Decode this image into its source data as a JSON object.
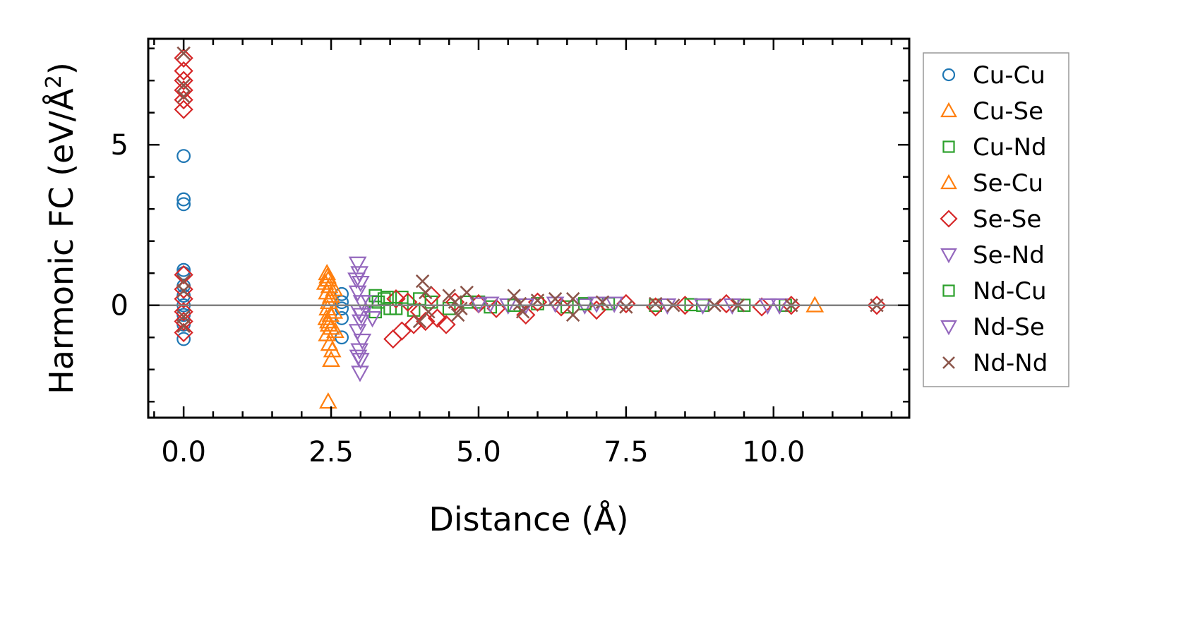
{
  "chart_data": {
    "type": "scatter",
    "title": "",
    "xlabel": "Distance (Å)",
    "ylabel_main": "Harmonic FC (eV/Å",
    "ylabel_sup": "2",
    "ylabel_close": ")",
    "xlim": [
      -0.6,
      12.3
    ],
    "ylim": [
      -3.5,
      8.3
    ],
    "x_ticks": [
      0.0,
      2.5,
      5.0,
      7.5,
      10.0
    ],
    "x_tick_labels": [
      "0.0",
      "2.5",
      "5.0",
      "7.5",
      "10.0"
    ],
    "y_ticks": [
      0,
      5
    ],
    "y_tick_labels": [
      "0",
      "5"
    ],
    "zero_line": true,
    "legend_position": "right",
    "series": [
      {
        "name": "Cu-Cu",
        "marker": "circle",
        "color": "#1f77b4",
        "points": [
          [
            0,
            4.65
          ],
          [
            0,
            3.3
          ],
          [
            0,
            3.15
          ],
          [
            0,
            1.1
          ],
          [
            0,
            1.0
          ],
          [
            0,
            0.6
          ],
          [
            0,
            0.3
          ],
          [
            0,
            0
          ],
          [
            0,
            -0.3
          ],
          [
            0,
            -0.6
          ],
          [
            0,
            -1.05
          ],
          [
            2.68,
            0.35
          ],
          [
            2.68,
            0.1
          ],
          [
            2.68,
            -0.1
          ],
          [
            2.68,
            -0.4
          ],
          [
            2.68,
            -1.0
          ]
        ]
      },
      {
        "name": "Cu-Se",
        "marker": "triangle-up",
        "color": "#ff7f0e",
        "points": [
          [
            2.43,
            1.0
          ],
          [
            2.45,
            0.8
          ],
          [
            2.47,
            0.6
          ],
          [
            2.43,
            0.4
          ],
          [
            2.5,
            0.3
          ],
          [
            2.46,
            0.1
          ],
          [
            2.44,
            -0.1
          ],
          [
            2.49,
            -0.3
          ],
          [
            2.45,
            -0.5
          ],
          [
            2.5,
            -0.7
          ],
          [
            2.43,
            -0.9
          ],
          [
            2.47,
            -1.2
          ],
          [
            2.5,
            -1.7
          ],
          [
            2.45,
            -3.0
          ],
          [
            2.55,
            0.5
          ],
          [
            2.55,
            -0.2
          ],
          [
            2.57,
            -0.8
          ],
          [
            2.4,
            0.7
          ],
          [
            2.42,
            -0.4
          ],
          [
            10.7,
            0.0
          ]
        ]
      },
      {
        "name": "Cu-Nd",
        "marker": "square",
        "color": "#2ca02c",
        "points": [
          [
            3.25,
            0.3
          ],
          [
            3.25,
            -0.2
          ],
          [
            3.4,
            0.2
          ],
          [
            3.5,
            -0.1
          ],
          [
            3.7,
            0.25
          ],
          [
            3.9,
            -0.15
          ],
          [
            4.2,
            0.1
          ],
          [
            4.5,
            -0.1
          ],
          [
            5.0,
            0.1
          ],
          [
            5.2,
            -0.05
          ],
          [
            6.0,
            0.05
          ],
          [
            6.5,
            -0.05
          ],
          [
            7.2,
            0.05
          ],
          [
            8.0,
            0
          ],
          [
            8.8,
            0
          ],
          [
            9.5,
            0
          ],
          [
            10.2,
            0
          ]
        ]
      },
      {
        "name": "Se-Cu",
        "marker": "triangle-up",
        "color": "#ff7f0e",
        "points": [
          [
            2.44,
            0.9
          ],
          [
            2.48,
            0.2
          ],
          [
            2.46,
            -0.6
          ],
          [
            2.52,
            -1.4
          ]
        ]
      },
      {
        "name": "Se-Se",
        "marker": "diamond",
        "color": "#d62728",
        "points": [
          [
            0,
            7.7
          ],
          [
            0,
            7.3
          ],
          [
            0,
            7.0
          ],
          [
            0,
            6.7
          ],
          [
            0,
            6.4
          ],
          [
            0,
            6.1
          ],
          [
            0,
            0.95
          ],
          [
            0,
            0.5
          ],
          [
            0,
            0.2
          ],
          [
            0,
            -0.2
          ],
          [
            0,
            -0.5
          ],
          [
            0,
            -0.85
          ],
          [
            3.55,
            -1.05
          ],
          [
            3.7,
            -0.8
          ],
          [
            3.9,
            -0.6
          ],
          [
            4.1,
            -0.5
          ],
          [
            4.3,
            -0.4
          ],
          [
            4.45,
            -0.6
          ],
          [
            3.6,
            0.2
          ],
          [
            3.8,
            0.1
          ],
          [
            4.0,
            -0.2
          ],
          [
            4.2,
            0.3
          ],
          [
            4.6,
            0.1
          ],
          [
            5.0,
            0.05
          ],
          [
            5.3,
            -0.1
          ],
          [
            5.8,
            -0.3
          ],
          [
            6.0,
            0.1
          ],
          [
            6.4,
            -0.05
          ],
          [
            7.0,
            -0.15
          ],
          [
            7.5,
            0.05
          ],
          [
            8.0,
            -0.05
          ],
          [
            8.5,
            0
          ],
          [
            9.2,
            0.05
          ],
          [
            9.8,
            -0.05
          ],
          [
            10.3,
            0
          ],
          [
            11.75,
            0
          ]
        ]
      },
      {
        "name": "Se-Nd",
        "marker": "triangle-down",
        "color": "#9467bd",
        "points": [
          [
            2.95,
            1.3
          ],
          [
            2.98,
            1.0
          ],
          [
            3.0,
            0.7
          ],
          [
            2.95,
            0.4
          ],
          [
            3.02,
            0.1
          ],
          [
            2.97,
            -0.2
          ],
          [
            3.0,
            -0.5
          ],
          [
            2.95,
            -0.8
          ],
          [
            3.03,
            -1.1
          ],
          [
            2.98,
            -1.4
          ],
          [
            3.0,
            -1.7
          ],
          [
            2.99,
            -2.1
          ],
          [
            3.15,
            0.1
          ],
          [
            3.2,
            -0.4
          ],
          [
            5.2,
            0.05
          ],
          [
            5.5,
            0
          ],
          [
            6.3,
            0.05
          ],
          [
            6.8,
            0
          ],
          [
            7.3,
            0.05
          ],
          [
            8.2,
            0
          ],
          [
            9.3,
            0
          ],
          [
            9.9,
            0
          ]
        ]
      },
      {
        "name": "Nd-Cu",
        "marker": "square",
        "color": "#2ca02c",
        "points": [
          [
            3.3,
            0.1
          ],
          [
            3.45,
            0.25
          ],
          [
            3.6,
            -0.1
          ],
          [
            4.0,
            0.2
          ],
          [
            4.8,
            0.1
          ],
          [
            5.6,
            0
          ],
          [
            6.8,
            0.05
          ],
          [
            8.6,
            0.02
          ]
        ]
      },
      {
        "name": "Nd-Se",
        "marker": "triangle-down",
        "color": "#9467bd",
        "points": [
          [
            2.93,
            0.8
          ],
          [
            3.01,
            -0.3
          ],
          [
            2.96,
            -1.6
          ],
          [
            5.0,
            0.03
          ],
          [
            5.8,
            0
          ],
          [
            7.0,
            0.05
          ],
          [
            8.8,
            0
          ],
          [
            10.1,
            0
          ]
        ]
      },
      {
        "name": "Nd-Nd",
        "marker": "cross",
        "color": "#8c564b",
        "points": [
          [
            0,
            7.85
          ],
          [
            0,
            6.85
          ],
          [
            0,
            6.5
          ],
          [
            0,
            0.75
          ],
          [
            0,
            0.45
          ],
          [
            0,
            -0.35
          ],
          [
            0,
            -0.65
          ],
          [
            4.05,
            0.75
          ],
          [
            4.1,
            0.4
          ],
          [
            4.15,
            -0.2
          ],
          [
            4.0,
            -0.5
          ],
          [
            4.5,
            0.3
          ],
          [
            4.6,
            0.1
          ],
          [
            4.7,
            -0.1
          ],
          [
            4.8,
            0.4
          ],
          [
            4.65,
            -0.3
          ],
          [
            5.6,
            0.3
          ],
          [
            5.7,
            0.05
          ],
          [
            5.75,
            -0.2
          ],
          [
            6.0,
            0.15
          ],
          [
            6.3,
            0.2
          ],
          [
            6.6,
            -0.3
          ],
          [
            6.6,
            0.2
          ],
          [
            7.1,
            0.1
          ],
          [
            7.5,
            -0.05
          ],
          [
            8.0,
            0.05
          ],
          [
            8.3,
            0
          ],
          [
            9.0,
            0
          ],
          [
            9.4,
            0
          ],
          [
            10.3,
            0
          ],
          [
            11.75,
            0
          ]
        ]
      }
    ],
    "legend": [
      {
        "label": "Cu-Cu",
        "marker": "circle",
        "color": "#1f77b4"
      },
      {
        "label": "Cu-Se",
        "marker": "triangle-up",
        "color": "#ff7f0e"
      },
      {
        "label": "Cu-Nd",
        "marker": "square",
        "color": "#2ca02c"
      },
      {
        "label": "Se-Cu",
        "marker": "triangle-up",
        "color": "#ff7f0e"
      },
      {
        "label": "Se-Se",
        "marker": "diamond",
        "color": "#d62728"
      },
      {
        "label": "Se-Nd",
        "marker": "triangle-down",
        "color": "#9467bd"
      },
      {
        "label": "Nd-Cu",
        "marker": "square",
        "color": "#2ca02c"
      },
      {
        "label": "Nd-Se",
        "marker": "triangle-down",
        "color": "#9467bd"
      },
      {
        "label": "Nd-Nd",
        "marker": "cross",
        "color": "#8c564b"
      }
    ]
  }
}
